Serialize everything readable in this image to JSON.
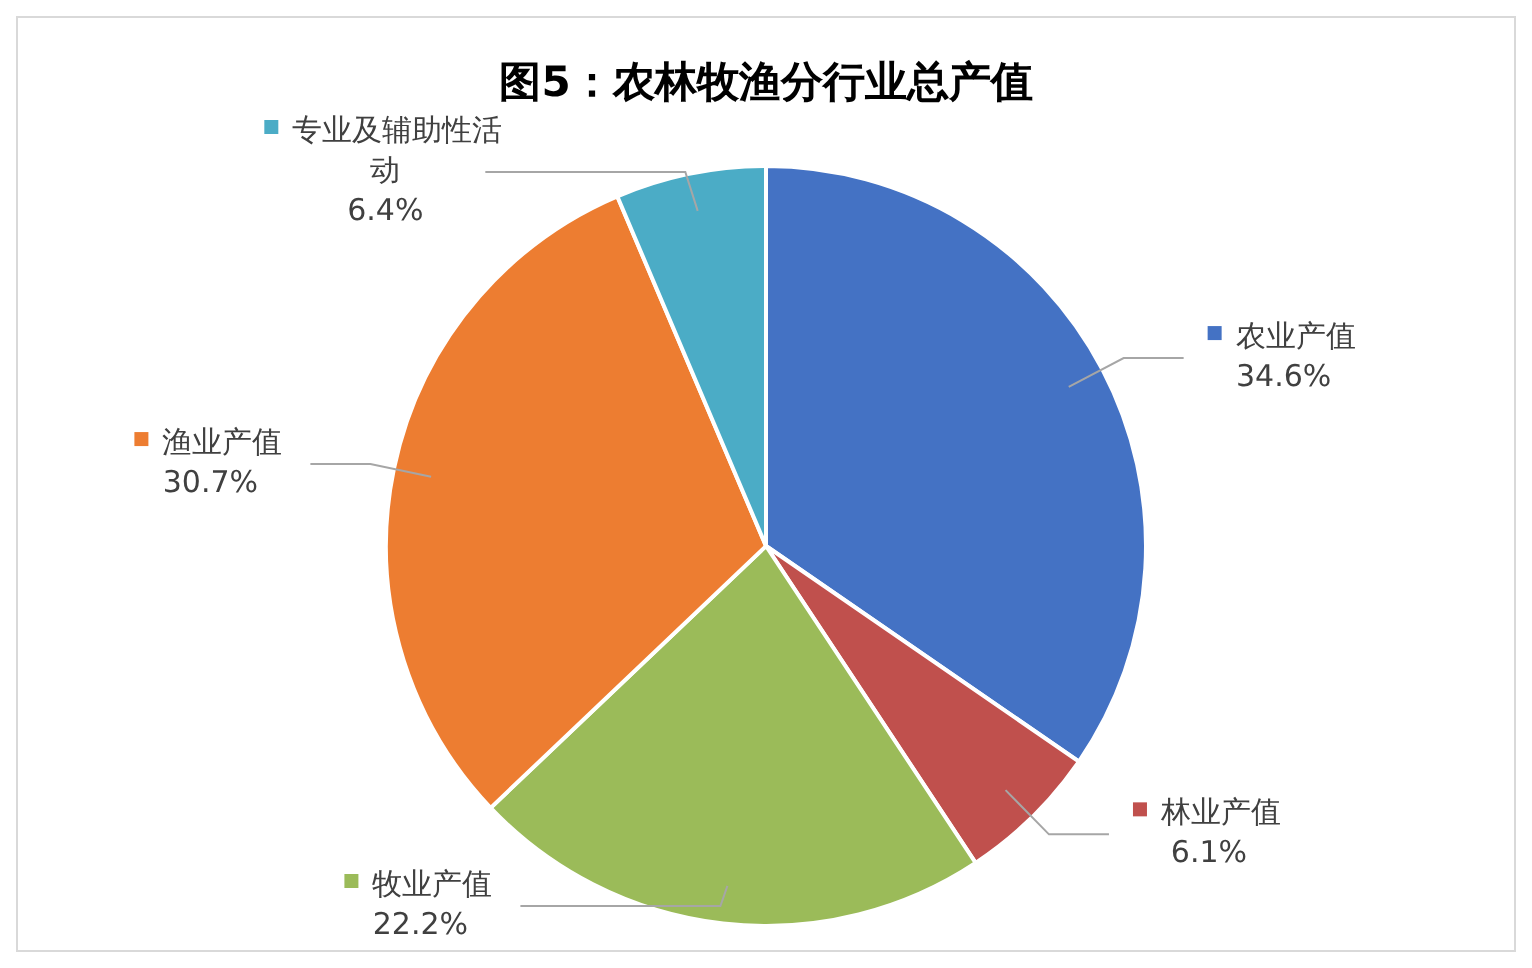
{
  "chart_data": {
    "type": "pie",
    "title": "图5：农林牧渔分行业总产值",
    "categories": [
      "农业产值",
      "林业产值",
      "牧业产值",
      "渔业产值",
      "专业及辅助性活动"
    ],
    "values": [
      34.6,
      6.1,
      22.2,
      30.7,
      6.4
    ],
    "value_labels": [
      "34.6%",
      "6.1%",
      "22.2%",
      "30.7%",
      "6.4%"
    ],
    "colors": [
      "#4472c4",
      "#c0504d",
      "#9bbb59",
      "#ed7d31",
      "#4bacc6"
    ],
    "legend": true
  }
}
